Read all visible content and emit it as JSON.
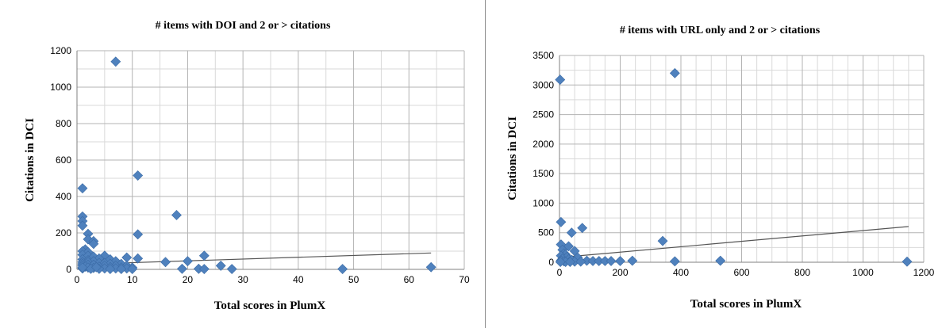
{
  "chart_data": [
    {
      "type": "scatter",
      "title": "# items with DOI and 2 or > citations",
      "xlabel": "Total scores in PlumX",
      "ylabel": "Citations in DCI",
      "xlim": [
        0,
        70
      ],
      "ylim": [
        0,
        1200
      ],
      "xticks": [
        0,
        10,
        20,
        30,
        40,
        50,
        60,
        70
      ],
      "yticks": [
        0,
        200,
        400,
        600,
        800,
        1000,
        1200
      ],
      "grid": true,
      "marker_color": "#4f81bd",
      "trend_color": "#555555",
      "trendline": [
        [
          1,
          28
        ],
        [
          64,
          90
        ]
      ],
      "points": [
        [
          7,
          1140
        ],
        [
          11,
          515
        ],
        [
          1,
          445
        ],
        [
          18,
          298
        ],
        [
          1,
          290
        ],
        [
          1,
          265
        ],
        [
          1,
          240
        ],
        [
          2,
          195
        ],
        [
          11,
          192
        ],
        [
          2,
          165
        ],
        [
          3,
          155
        ],
        [
          3,
          140
        ],
        [
          1.5,
          110
        ],
        [
          1,
          100
        ],
        [
          2,
          95
        ],
        [
          1,
          80
        ],
        [
          2,
          75
        ],
        [
          5,
          75
        ],
        [
          3,
          70
        ],
        [
          9,
          65
        ],
        [
          23,
          75
        ],
        [
          11,
          60
        ],
        [
          4,
          60
        ],
        [
          6,
          55
        ],
        [
          1,
          55
        ],
        [
          2,
          50
        ],
        [
          7,
          45
        ],
        [
          3,
          45
        ],
        [
          16,
          40
        ],
        [
          20,
          45
        ],
        [
          1,
          40
        ],
        [
          2,
          40
        ],
        [
          4,
          35
        ],
        [
          5,
          35
        ],
        [
          6,
          30
        ],
        [
          8,
          30
        ],
        [
          1,
          30
        ],
        [
          26,
          20
        ],
        [
          2,
          25
        ],
        [
          3,
          25
        ],
        [
          5,
          20
        ],
        [
          7,
          20
        ],
        [
          9,
          20
        ],
        [
          1,
          20
        ],
        [
          1.5,
          15
        ],
        [
          4,
          15
        ],
        [
          6,
          12
        ],
        [
          8,
          10
        ],
        [
          10,
          10
        ],
        [
          2,
          10
        ],
        [
          3,
          8
        ],
        [
          5,
          5
        ],
        [
          7,
          5
        ],
        [
          9,
          5
        ],
        [
          1,
          5
        ],
        [
          19,
          3
        ],
        [
          22,
          3
        ],
        [
          28,
          2
        ],
        [
          48,
          2
        ],
        [
          64,
          12
        ],
        [
          23,
          2
        ],
        [
          4,
          3
        ],
        [
          6,
          2
        ],
        [
          8,
          2
        ],
        [
          10,
          2
        ],
        [
          2.5,
          3
        ],
        [
          1,
          10
        ],
        [
          3.5,
          12
        ]
      ]
    },
    {
      "type": "scatter",
      "title": "# items with URL only and 2 or > citations",
      "xlabel": "Total scores in PlumX",
      "ylabel": "Citations in DCI",
      "xlim": [
        0,
        1200
      ],
      "ylim": [
        0,
        3500
      ],
      "xticks": [
        0,
        200,
        400,
        600,
        800,
        1000,
        1200
      ],
      "yticks": [
        0,
        500,
        1000,
        1500,
        2000,
        2500,
        3000,
        3500
      ],
      "grid": true,
      "marker_color": "#4f81bd",
      "trend_color": "#555555",
      "trendline": [
        [
          0,
          80
        ],
        [
          1150,
          605
        ]
      ],
      "points": [
        [
          380,
          3200
        ],
        [
          2,
          3090
        ],
        [
          5,
          680
        ],
        [
          75,
          580
        ],
        [
          40,
          500
        ],
        [
          340,
          360
        ],
        [
          5,
          300
        ],
        [
          30,
          270
        ],
        [
          10,
          210
        ],
        [
          50,
          190
        ],
        [
          15,
          150
        ],
        [
          20,
          130
        ],
        [
          5,
          110
        ],
        [
          25,
          90
        ],
        [
          60,
          80
        ],
        [
          10,
          60
        ],
        [
          30,
          50
        ],
        [
          40,
          40
        ],
        [
          5,
          30
        ],
        [
          90,
          25
        ],
        [
          110,
          20
        ],
        [
          130,
          20
        ],
        [
          150,
          20
        ],
        [
          170,
          20
        ],
        [
          200,
          20
        ],
        [
          240,
          25
        ],
        [
          380,
          15
        ],
        [
          530,
          25
        ],
        [
          1145,
          10
        ],
        [
          15,
          15
        ],
        [
          50,
          10
        ],
        [
          70,
          10
        ],
        [
          20,
          5
        ],
        [
          35,
          5
        ],
        [
          3,
          5
        ]
      ]
    }
  ]
}
